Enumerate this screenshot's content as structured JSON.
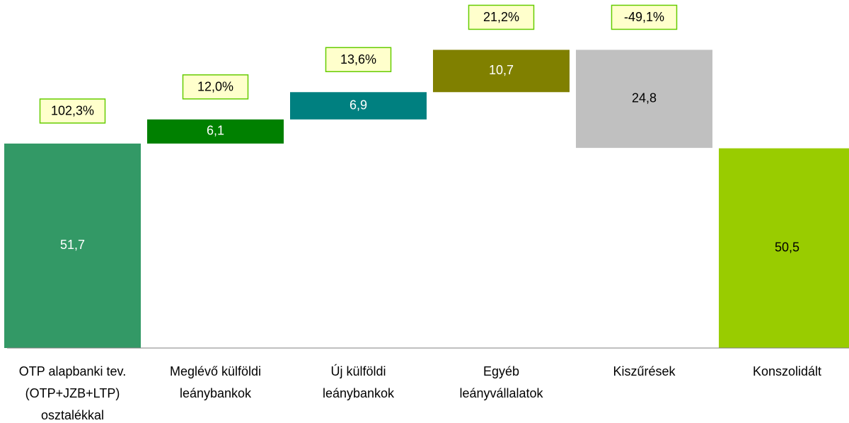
{
  "chart_data": {
    "type": "waterfall",
    "categories": [
      [
        "OTP alapbanki tev.",
        "(OTP+JZB+LTP)",
        "osztalékkal"
      ],
      [
        "Meglévő külföldi",
        "leánybankok"
      ],
      [
        "Új külföldi",
        "leánybankok"
      ],
      [
        "Egyéb",
        "leányvállalatok"
      ],
      [
        "Kiszűrések"
      ],
      [
        "Konszolidált"
      ]
    ],
    "measures": [
      "absolute",
      "relative",
      "relative",
      "relative",
      "relative",
      "absolute"
    ],
    "values": [
      51.7,
      6.1,
      6.9,
      10.7,
      -24.8,
      50.5
    ],
    "value_labels": [
      "51,7",
      "6,1",
      "6,9",
      "10,7",
      "24,8",
      "50,5"
    ],
    "percents": [
      102.3,
      12.0,
      13.6,
      21.2,
      -49.1
    ],
    "percent_labels": [
      "102,3%",
      "12,0%",
      "13,6%",
      "21,2%",
      "-49,1%"
    ],
    "colors": [
      "#339966",
      "#008000",
      "#008080",
      "#808000",
      "#c0c0c0",
      "#99cc00"
    ],
    "label_colors": [
      "#ffffff",
      "#ffffff",
      "#ffffff",
      "#ffffff",
      "#000000",
      "#000000"
    ],
    "ylim": [
      0,
      88
    ]
  }
}
